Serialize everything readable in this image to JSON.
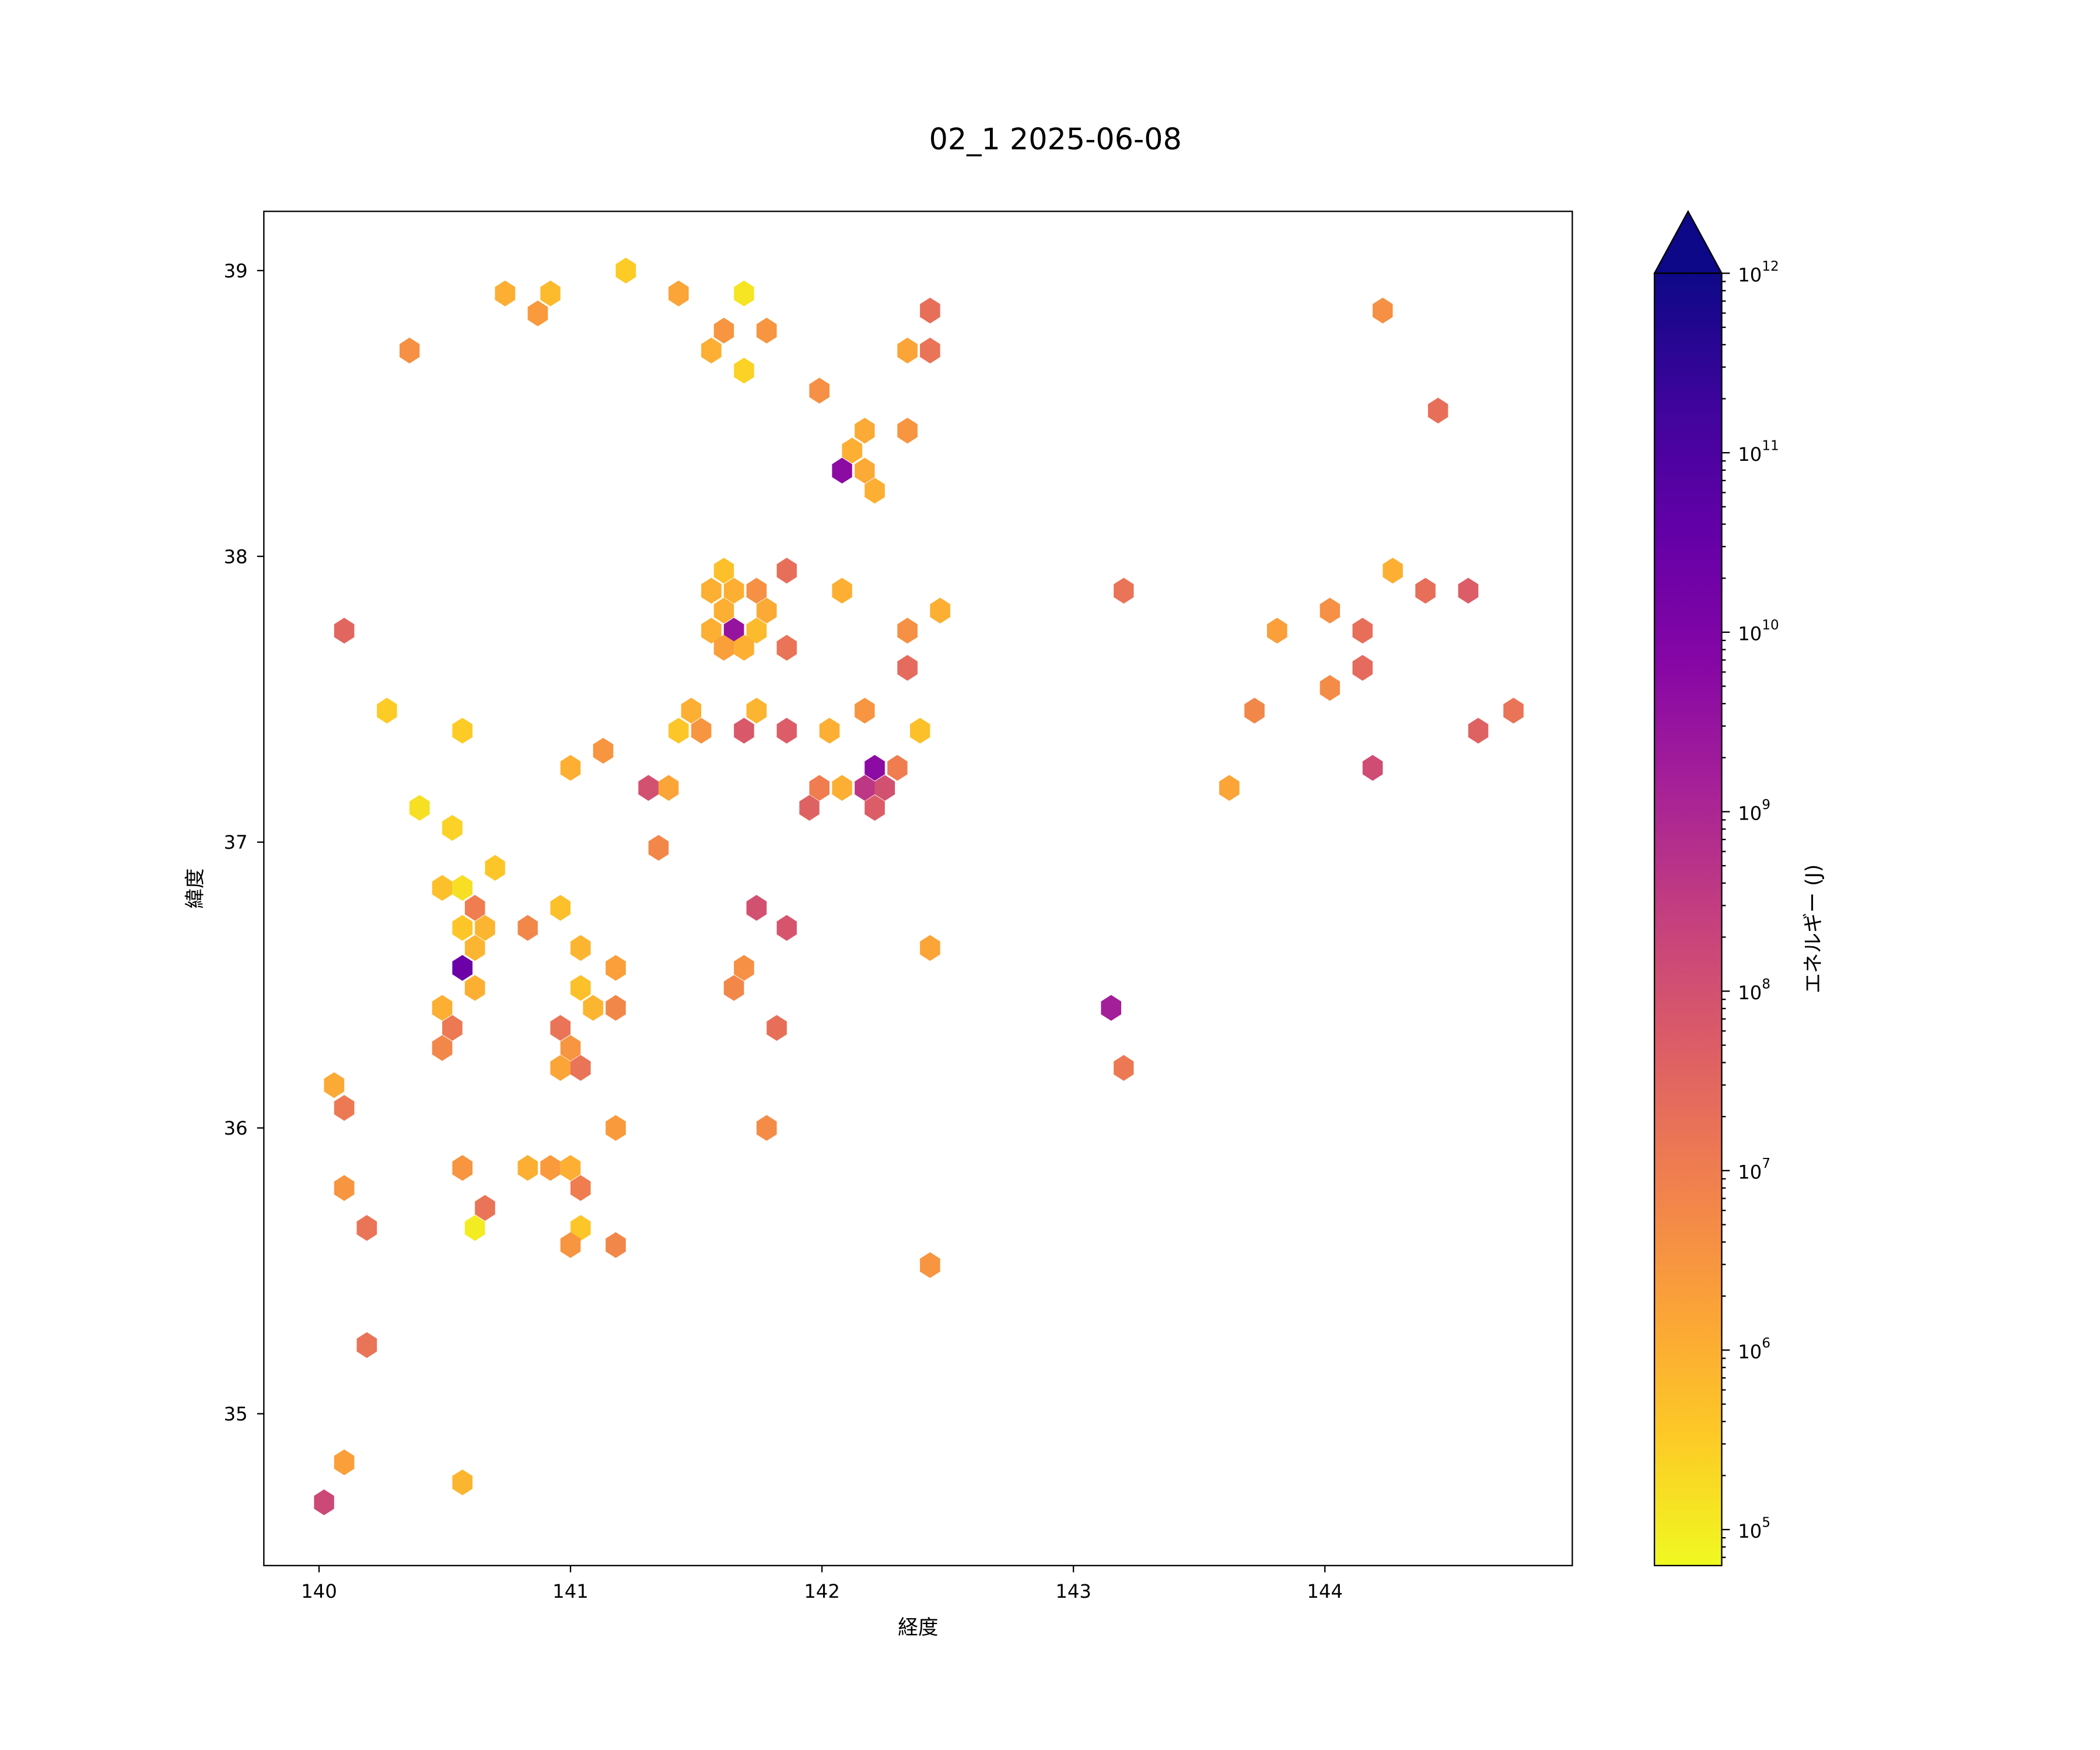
{
  "chart_data": {
    "type": "hexbin",
    "title": "02_1 2025-06-08",
    "xlabel": "経度",
    "ylabel": "緯度",
    "xlim": [
      139.78,
      144.98
    ],
    "ylim": [
      34.47,
      39.21
    ],
    "xticks": [
      "140",
      "141",
      "142",
      "143",
      "144"
    ],
    "yticks": [
      "35",
      "36",
      "37",
      "38",
      "39"
    ],
    "grid": false,
    "colormap": "plasma",
    "color_scale": "log",
    "colorbar": {
      "label": "エネルギー (J)",
      "range": [
        63000,
        1000000000000
      ],
      "extend": "max",
      "ticks": [
        "10^5",
        "10^6",
        "10^7",
        "10^8",
        "10^9",
        "10^10",
        "10^11",
        "10^12"
      ],
      "extend_color": "#0d0887"
    },
    "value_key": "[longitude, latitude, log10 energy (J)]",
    "points": [
      [
        140.36,
        38.72,
        6.6
      ],
      [
        140.74,
        38.92,
        6.0
      ],
      [
        140.87,
        38.85,
        6.4
      ],
      [
        140.92,
        38.92,
        5.8
      ],
      [
        141.22,
        39.0,
        5.5
      ],
      [
        141.43,
        38.92,
        6.2
      ],
      [
        141.69,
        38.92,
        5.1
      ],
      [
        141.61,
        38.79,
        6.5
      ],
      [
        141.78,
        38.79,
        6.5
      ],
      [
        141.56,
        38.72,
        6.0
      ],
      [
        141.69,
        38.65,
        5.4
      ],
      [
        141.99,
        38.58,
        6.6
      ],
      [
        142.43,
        38.86,
        7.3
      ],
      [
        142.34,
        38.72,
        6.2
      ],
      [
        142.43,
        38.72,
        7.2
      ],
      [
        142.34,
        38.44,
        6.5
      ],
      [
        142.17,
        38.44,
        6.1
      ],
      [
        142.12,
        38.37,
        6.0
      ],
      [
        142.08,
        38.3,
        9.7
      ],
      [
        142.17,
        38.3,
        6.1
      ],
      [
        142.21,
        38.23,
        6.0
      ],
      [
        144.23,
        38.86,
        6.6
      ],
      [
        144.45,
        38.51,
        7.3
      ],
      [
        141.61,
        37.95,
        5.7
      ],
      [
        141.56,
        37.88,
        6.0
      ],
      [
        141.65,
        37.88,
        6.0
      ],
      [
        141.74,
        37.88,
        6.6
      ],
      [
        141.61,
        37.81,
        6.0
      ],
      [
        141.78,
        37.81,
        6.1
      ],
      [
        141.56,
        37.74,
        6.0
      ],
      [
        141.65,
        37.74,
        9.5
      ],
      [
        141.74,
        37.74,
        5.8
      ],
      [
        141.61,
        37.68,
        6.3
      ],
      [
        141.69,
        37.68,
        6.0
      ],
      [
        141.86,
        37.95,
        7.3
      ],
      [
        141.86,
        37.68,
        7.2
      ],
      [
        142.08,
        37.88,
        6.0
      ],
      [
        142.47,
        37.81,
        6.0
      ],
      [
        142.34,
        37.74,
        6.6
      ],
      [
        142.34,
        37.61,
        7.4
      ],
      [
        140.1,
        37.74,
        7.5
      ],
      [
        140.27,
        37.46,
        5.5
      ],
      [
        140.57,
        37.39,
        5.5
      ],
      [
        141.48,
        37.46,
        6.0
      ],
      [
        141.43,
        37.39,
        5.6
      ],
      [
        141.52,
        37.39,
        6.5
      ],
      [
        141.74,
        37.46,
        5.9
      ],
      [
        141.69,
        37.39,
        7.8
      ],
      [
        141.86,
        37.39,
        7.7
      ],
      [
        142.03,
        37.39,
        6.0
      ],
      [
        142.17,
        37.46,
        6.5
      ],
      [
        142.39,
        37.39,
        5.7
      ],
      [
        141.13,
        37.32,
        6.5
      ],
      [
        141.0,
        37.26,
        6.0
      ],
      [
        141.31,
        37.19,
        8.0
      ],
      [
        141.39,
        37.19,
        6.2
      ],
      [
        141.99,
        37.19,
        7.0
      ],
      [
        142.08,
        37.19,
        6.0
      ],
      [
        142.17,
        37.19,
        8.6
      ],
      [
        142.21,
        37.26,
        9.7
      ],
      [
        142.3,
        37.26,
        7.0
      ],
      [
        142.25,
        37.19,
        8.0
      ],
      [
        141.95,
        37.12,
        7.6
      ],
      [
        142.21,
        37.12,
        7.7
      ],
      [
        140.4,
        37.12,
        5.2
      ],
      [
        140.53,
        37.05,
        5.4
      ],
      [
        141.35,
        36.98,
        6.8
      ],
      [
        140.7,
        36.91,
        5.6
      ],
      [
        140.49,
        36.84,
        5.7
      ],
      [
        140.57,
        36.84,
        5.2
      ],
      [
        140.62,
        36.77,
        7.0
      ],
      [
        140.96,
        36.77,
        5.7
      ],
      [
        141.74,
        36.77,
        8.0
      ],
      [
        140.57,
        36.7,
        5.6
      ],
      [
        140.66,
        36.7,
        5.9
      ],
      [
        140.83,
        36.7,
        6.8
      ],
      [
        141.86,
        36.7,
        7.9
      ],
      [
        140.62,
        36.63,
        5.9
      ],
      [
        141.04,
        36.63,
        5.9
      ],
      [
        142.43,
        36.63,
        6.2
      ],
      [
        140.57,
        36.56,
        10.4
      ],
      [
        141.18,
        36.56,
        6.3
      ],
      [
        141.69,
        36.56,
        6.6
      ],
      [
        140.62,
        36.49,
        6.0
      ],
      [
        141.04,
        36.49,
        5.7
      ],
      [
        141.65,
        36.49,
        6.8
      ],
      [
        140.49,
        36.42,
        6.0
      ],
      [
        141.09,
        36.42,
        5.9
      ],
      [
        141.18,
        36.42,
        6.8
      ],
      [
        143.15,
        36.42,
        9.2
      ],
      [
        140.53,
        36.35,
        7.1
      ],
      [
        140.96,
        36.35,
        7.2
      ],
      [
        141.82,
        36.35,
        7.3
      ],
      [
        140.49,
        36.28,
        6.8
      ],
      [
        141.0,
        36.28,
        6.5
      ],
      [
        140.96,
        36.21,
        6.2
      ],
      [
        141.04,
        36.21,
        7.2
      ],
      [
        143.2,
        36.21,
        7.1
      ],
      [
        140.06,
        36.15,
        6.1
      ],
      [
        140.1,
        36.07,
        7.1
      ],
      [
        141.18,
        36.0,
        6.4
      ],
      [
        141.78,
        36.0,
        6.7
      ],
      [
        140.57,
        35.86,
        6.5
      ],
      [
        140.83,
        35.86,
        6.0
      ],
      [
        140.92,
        35.86,
        6.4
      ],
      [
        141.0,
        35.86,
        6.0
      ],
      [
        140.1,
        35.79,
        6.5
      ],
      [
        141.04,
        35.79,
        7.0
      ],
      [
        140.66,
        35.72,
        7.2
      ],
      [
        140.19,
        35.65,
        7.2
      ],
      [
        140.62,
        35.65,
        5.0
      ],
      [
        141.04,
        35.65,
        5.6
      ],
      [
        141.0,
        35.59,
        6.5
      ],
      [
        141.18,
        35.59,
        6.8
      ],
      [
        142.43,
        35.52,
        6.5
      ],
      [
        140.19,
        35.24,
        7.2
      ],
      [
        140.1,
        34.83,
        6.3
      ],
      [
        140.57,
        34.76,
        5.9
      ],
      [
        140.02,
        34.69,
        8.2
      ],
      [
        143.2,
        37.88,
        7.2
      ],
      [
        144.27,
        37.95,
        6.0
      ],
      [
        144.4,
        37.88,
        7.3
      ],
      [
        144.57,
        37.88,
        7.7
      ],
      [
        144.02,
        37.81,
        6.6
      ],
      [
        143.81,
        37.74,
        6.3
      ],
      [
        144.15,
        37.74,
        7.3
      ],
      [
        144.15,
        37.61,
        7.4
      ],
      [
        144.02,
        37.54,
        6.7
      ],
      [
        143.72,
        37.46,
        6.8
      ],
      [
        144.75,
        37.46,
        7.2
      ],
      [
        144.61,
        37.39,
        7.6
      ],
      [
        143.62,
        37.19,
        6.2
      ],
      [
        144.19,
        37.26,
        8.1
      ]
    ]
  }
}
